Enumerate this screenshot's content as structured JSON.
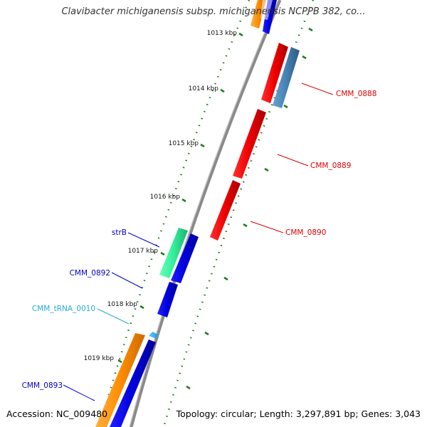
{
  "title": "Clavibacter michiganensis subsp. michiganensis NCPPB 382, co...",
  "footer": {
    "accession": "Accession: NC_009480",
    "info": "Topology: circular; Length: 3,297,891 bp; Genes: 3,043"
  },
  "colors": {
    "backbone": "#8a8a8a",
    "tick_mark": "#1f7a1f",
    "forward_gene": "#0000ee",
    "reverse_gene": "#ee0000",
    "cds_outer_forward": "#ff8c00",
    "cds_outer_reverse": "#4682b4",
    "rrna_gene": "#33ee99",
    "trna_gene": "#33bbee"
  },
  "ticks": [
    "1013 kbp",
    "1014 kbp",
    "1015 kbp",
    "1016 kbp",
    "1017 kbp",
    "1018 kbp",
    "1019 kbp"
  ],
  "gene_labels": [
    {
      "text": "CMM_0888",
      "color": "#dd0000",
      "side": "right"
    },
    {
      "text": "CMM_0889",
      "color": "#dd0000",
      "side": "right"
    },
    {
      "text": "CMM_0890",
      "color": "#dd0000",
      "side": "right"
    },
    {
      "text": "strB",
      "color": "#0000cc",
      "side": "left"
    },
    {
      "text": "CMM_0892",
      "color": "#0000cc",
      "side": "left"
    },
    {
      "text": "CMM_tRNA_0010",
      "color": "#22aadd",
      "side": "left"
    },
    {
      "text": "CMM_0893",
      "color": "#0000cc",
      "side": "left"
    }
  ]
}
